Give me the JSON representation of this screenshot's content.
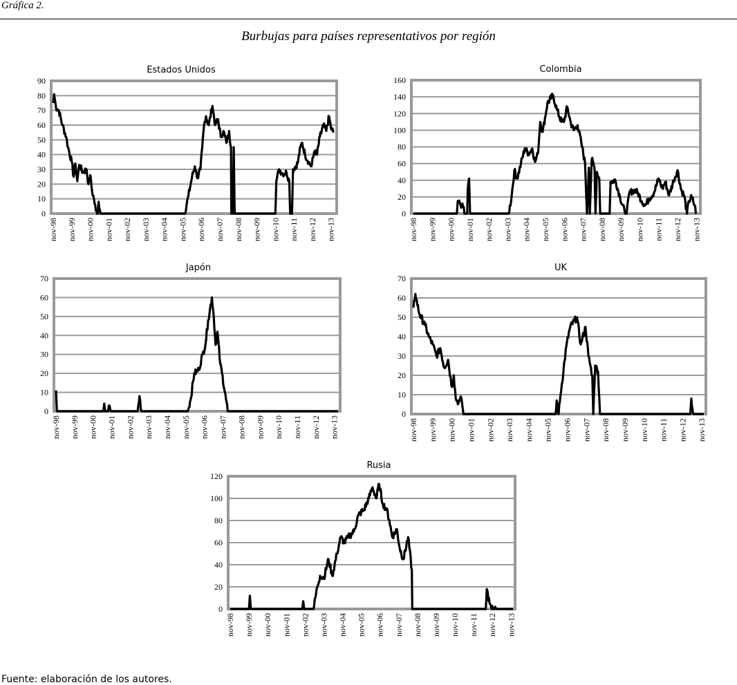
{
  "figure": {
    "label": "Gráfica 2.",
    "title": "Burbujas para países representativos por región",
    "source": "Fuente: elaboración de los autores."
  },
  "colors": {
    "line": "#000000",
    "grid": "#999999",
    "frame": "#999999"
  },
  "chart_data": [
    {
      "type": "line",
      "title": "Estados Unidos",
      "ylim": [
        0,
        90
      ],
      "yticks": [
        0,
        10,
        20,
        30,
        40,
        50,
        60,
        70,
        80,
        90
      ],
      "x_unit": "years since nov-98",
      "xlim": [
        0,
        15.2
      ],
      "xticks": [
        "nov-98",
        "nov-99",
        "nov-00",
        "nov-01",
        "nov-02",
        "nov-03",
        "nov-04",
        "nov-05",
        "nov-06",
        "nov-07",
        "nov-08",
        "nov-09",
        "nov-10",
        "nov-11",
        "nov-12",
        "nov-13"
      ],
      "points": [
        [
          0,
          75
        ],
        [
          0.05,
          81
        ],
        [
          0.15,
          72
        ],
        [
          0.3,
          70
        ],
        [
          0.5,
          60
        ],
        [
          0.7,
          52
        ],
        [
          0.8,
          45
        ],
        [
          1.0,
          35
        ],
        [
          1.1,
          25
        ],
        [
          1.2,
          34
        ],
        [
          1.3,
          22
        ],
        [
          1.4,
          33
        ],
        [
          1.6,
          28
        ],
        [
          1.8,
          30
        ],
        [
          1.9,
          20
        ],
        [
          2.0,
          26
        ],
        [
          2.1,
          15
        ],
        [
          2.2,
          10
        ],
        [
          2.3,
          2
        ],
        [
          2.4,
          0
        ],
        [
          2.45,
          8
        ],
        [
          2.55,
          0
        ],
        [
          7.1,
          0
        ],
        [
          7.3,
          12
        ],
        [
          7.5,
          25
        ],
        [
          7.65,
          32
        ],
        [
          7.8,
          24
        ],
        [
          7.95,
          30
        ],
        [
          8.05,
          45
        ],
        [
          8.15,
          60
        ],
        [
          8.25,
          66
        ],
        [
          8.4,
          60
        ],
        [
          8.6,
          73
        ],
        [
          8.75,
          60
        ],
        [
          8.9,
          64
        ],
        [
          9.05,
          52
        ],
        [
          9.2,
          56
        ],
        [
          9.35,
          48
        ],
        [
          9.5,
          56
        ],
        [
          9.6,
          45
        ],
        [
          9.62,
          0
        ],
        [
          9.7,
          0
        ],
        [
          9.75,
          45
        ],
        [
          9.8,
          0
        ],
        [
          12.0,
          0
        ],
        [
          12.05,
          22
        ],
        [
          12.2,
          30
        ],
        [
          12.4,
          27
        ],
        [
          12.6,
          28
        ],
        [
          12.75,
          22
        ],
        [
          12.8,
          0
        ],
        [
          12.9,
          0
        ],
        [
          12.95,
          30
        ],
        [
          13.2,
          34
        ],
        [
          13.35,
          45
        ],
        [
          13.45,
          48
        ],
        [
          13.6,
          40
        ],
        [
          13.8,
          35
        ],
        [
          13.95,
          32
        ],
        [
          14.1,
          42
        ],
        [
          14.25,
          40
        ],
        [
          14.4,
          52
        ],
        [
          14.6,
          60
        ],
        [
          14.75,
          56
        ],
        [
          14.9,
          66
        ],
        [
          15.0,
          58
        ],
        [
          15.15,
          55
        ]
      ]
    },
    {
      "type": "line",
      "title": "Colombia",
      "ylim": [
        0,
        160
      ],
      "yticks": [
        0,
        20,
        40,
        60,
        80,
        100,
        120,
        140,
        160
      ],
      "x_unit": "years since nov-98",
      "xlim": [
        0,
        15.1
      ],
      "xticks": [
        "nov-98",
        "nov-99",
        "nov-00",
        "nov-01",
        "nov-02",
        "nov-03",
        "nov-04",
        "nov-05",
        "nov-06",
        "nov-07",
        "nov-08",
        "nov-09",
        "nov-10",
        "nov-11",
        "nov-12",
        "nov-13"
      ],
      "points": [
        [
          0,
          0
        ],
        [
          2.3,
          0
        ],
        [
          2.35,
          15
        ],
        [
          2.5,
          10
        ],
        [
          2.6,
          12
        ],
        [
          2.7,
          0
        ],
        [
          2.85,
          0
        ],
        [
          2.88,
          30
        ],
        [
          2.95,
          42
        ],
        [
          3.0,
          0
        ],
        [
          5.05,
          0
        ],
        [
          5.2,
          20
        ],
        [
          5.35,
          52
        ],
        [
          5.5,
          42
        ],
        [
          5.7,
          60
        ],
        [
          5.9,
          78
        ],
        [
          6.1,
          72
        ],
        [
          6.3,
          78
        ],
        [
          6.45,
          62
        ],
        [
          6.6,
          72
        ],
        [
          6.72,
          110
        ],
        [
          6.85,
          98
        ],
        [
          7.1,
          132
        ],
        [
          7.4,
          142
        ],
        [
          7.6,
          125
        ],
        [
          7.85,
          110
        ],
        [
          8.0,
          112
        ],
        [
          8.15,
          128
        ],
        [
          8.35,
          108
        ],
        [
          8.5,
          100
        ],
        [
          8.7,
          106
        ],
        [
          8.9,
          85
        ],
        [
          9.1,
          60
        ],
        [
          9.2,
          0
        ],
        [
          9.3,
          55
        ],
        [
          9.35,
          0
        ],
        [
          9.45,
          65
        ],
        [
          9.6,
          55
        ],
        [
          9.65,
          0
        ],
        [
          9.72,
          50
        ],
        [
          9.85,
          42
        ],
        [
          9.9,
          0
        ],
        [
          10.4,
          0
        ],
        [
          10.45,
          38
        ],
        [
          10.7,
          40
        ],
        [
          10.95,
          20
        ],
        [
          11.2,
          2
        ],
        [
          11.3,
          0
        ],
        [
          11.45,
          25
        ],
        [
          11.7,
          28
        ],
        [
          11.9,
          25
        ],
        [
          12.1,
          15
        ],
        [
          12.3,
          10
        ],
        [
          12.5,
          18
        ],
        [
          12.75,
          25
        ],
        [
          13.0,
          42
        ],
        [
          13.2,
          30
        ],
        [
          13.35,
          38
        ],
        [
          13.55,
          22
        ],
        [
          13.8,
          40
        ],
        [
          14.0,
          52
        ],
        [
          14.2,
          28
        ],
        [
          14.35,
          22
        ],
        [
          14.5,
          0
        ],
        [
          14.6,
          15
        ],
        [
          14.75,
          20
        ],
        [
          14.9,
          10
        ],
        [
          15.0,
          0
        ]
      ]
    },
    {
      "type": "line",
      "title": "Japón",
      "ylim": [
        0,
        70
      ],
      "yticks": [
        0,
        10,
        20,
        30,
        40,
        50,
        60,
        70
      ],
      "x_unit": "years since nov-98",
      "xlim": [
        0,
        15.2
      ],
      "xticks": [
        "nov-98",
        "nov-99",
        "nov-00",
        "nov-01",
        "nov-02",
        "nov-03",
        "nov-04",
        "nov-05",
        "nov-06",
        "nov-07",
        "nov-08",
        "nov-09",
        "nov-10",
        "nov-11",
        "nov-12",
        "nov-13"
      ],
      "points": [
        [
          0,
          11
        ],
        [
          0.05,
          0
        ],
        [
          2.55,
          0
        ],
        [
          2.6,
          4
        ],
        [
          2.65,
          0
        ],
        [
          2.8,
          0
        ],
        [
          2.85,
          3
        ],
        [
          2.95,
          0
        ],
        [
          4.4,
          0
        ],
        [
          4.5,
          8
        ],
        [
          4.6,
          0
        ],
        [
          7.1,
          0
        ],
        [
          7.25,
          6
        ],
        [
          7.45,
          20
        ],
        [
          7.7,
          22
        ],
        [
          7.9,
          30
        ],
        [
          8.05,
          35
        ],
        [
          8.2,
          48
        ],
        [
          8.4,
          60
        ],
        [
          8.5,
          50
        ],
        [
          8.6,
          35
        ],
        [
          8.7,
          42
        ],
        [
          8.85,
          25
        ],
        [
          8.95,
          20
        ],
        [
          9.25,
          0
        ],
        [
          15.2,
          0
        ]
      ]
    },
    {
      "type": "line",
      "title": "UK",
      "ylim": [
        0,
        70
      ],
      "yticks": [
        0,
        10,
        20,
        30,
        40,
        50,
        60,
        70
      ],
      "x_unit": "years since nov-98",
      "xlim": [
        0,
        15.1
      ],
      "xticks": [
        "nov-98",
        "nov-99",
        "nov-00",
        "nov-01",
        "nov-02",
        "nov-03",
        "nov-04",
        "nov-05",
        "nov-06",
        "nov-07",
        "nov-08",
        "nov-09",
        "nov-10",
        "nov-11",
        "nov-12",
        "nov-13"
      ],
      "points": [
        [
          0,
          55
        ],
        [
          0.1,
          62
        ],
        [
          0.3,
          52
        ],
        [
          0.6,
          46
        ],
        [
          0.8,
          40
        ],
        [
          1.0,
          36
        ],
        [
          1.2,
          30
        ],
        [
          1.4,
          34
        ],
        [
          1.6,
          24
        ],
        [
          1.8,
          28
        ],
        [
          2.0,
          14
        ],
        [
          2.1,
          20
        ],
        [
          2.2,
          8
        ],
        [
          2.35,
          6
        ],
        [
          2.5,
          8
        ],
        [
          2.6,
          0
        ],
        [
          2.75,
          0
        ],
        [
          7.4,
          0
        ],
        [
          7.45,
          7
        ],
        [
          7.55,
          0
        ],
        [
          7.65,
          10
        ],
        [
          7.95,
          35
        ],
        [
          8.15,
          45
        ],
        [
          8.5,
          50
        ],
        [
          8.7,
          36
        ],
        [
          8.95,
          45
        ],
        [
          9.1,
          30
        ],
        [
          9.3,
          20
        ],
        [
          9.35,
          0
        ],
        [
          9.45,
          25
        ],
        [
          9.6,
          22
        ],
        [
          9.7,
          0
        ],
        [
          14.4,
          0
        ],
        [
          14.45,
          8
        ],
        [
          14.55,
          0
        ],
        [
          15.1,
          0
        ]
      ]
    },
    {
      "type": "line",
      "title": "Rusia",
      "ylim": [
        0,
        120
      ],
      "yticks": [
        0,
        20,
        40,
        60,
        80,
        100,
        120
      ],
      "x_unit": "years since nov-98",
      "xlim": [
        0,
        15.1
      ],
      "xticks": [
        "nov-98",
        "nov-99",
        "nov-00",
        "nov-01",
        "nov-02",
        "nov-03",
        "nov-04",
        "nov-05",
        "nov-06",
        "nov-07",
        "nov-08",
        "nov-09",
        "nov-10",
        "nov-11",
        "nov-12",
        "nov-13"
      ],
      "points": [
        [
          0,
          0
        ],
        [
          1.0,
          0
        ],
        [
          1.05,
          12
        ],
        [
          1.1,
          0
        ],
        [
          3.85,
          0
        ],
        [
          3.9,
          7
        ],
        [
          3.95,
          0
        ],
        [
          4.45,
          0
        ],
        [
          4.65,
          20
        ],
        [
          4.8,
          30
        ],
        [
          5.0,
          28
        ],
        [
          5.25,
          45
        ],
        [
          5.45,
          30
        ],
        [
          5.7,
          50
        ],
        [
          5.9,
          65
        ],
        [
          6.1,
          60
        ],
        [
          6.3,
          65
        ],
        [
          6.6,
          70
        ],
        [
          6.85,
          85
        ],
        [
          7.15,
          90
        ],
        [
          7.4,
          100
        ],
        [
          7.6,
          110
        ],
        [
          7.8,
          100
        ],
        [
          7.95,
          113
        ],
        [
          8.15,
          95
        ],
        [
          8.35,
          90
        ],
        [
          8.5,
          80
        ],
        [
          8.65,
          65
        ],
        [
          8.9,
          72
        ],
        [
          9.05,
          55
        ],
        [
          9.25,
          45
        ],
        [
          9.5,
          65
        ],
        [
          9.7,
          35
        ],
        [
          9.72,
          0
        ],
        [
          13.65,
          0
        ],
        [
          13.7,
          18
        ],
        [
          13.85,
          5
        ],
        [
          13.95,
          0
        ],
        [
          14.15,
          2
        ],
        [
          14.2,
          0
        ],
        [
          15.1,
          0
        ]
      ]
    }
  ]
}
